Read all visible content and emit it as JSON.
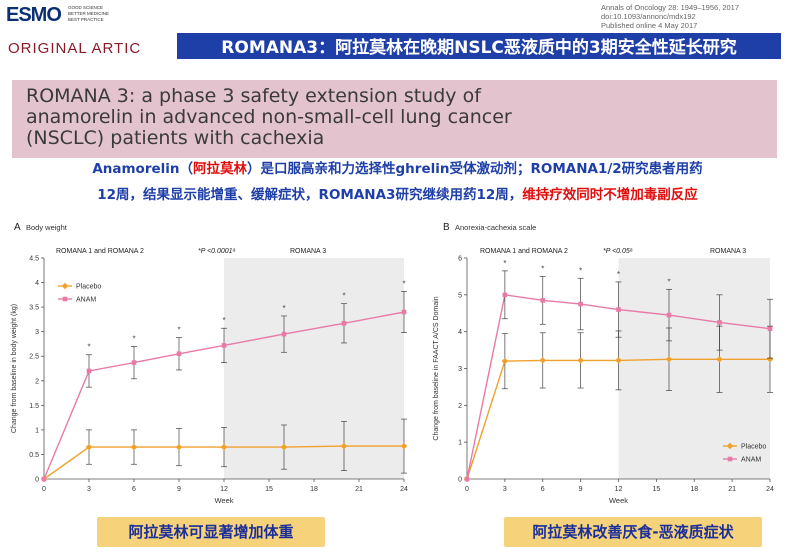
{
  "header": {
    "logo": "ESMO",
    "tagline": [
      "GOOD SCIENCE",
      "BETTER MEDICINE",
      "BEST PRACTICE"
    ],
    "journal_lines": [
      "Annals of Oncology 28: 1949–1956, 2017",
      "doi:10.1093/annonc/mdx192",
      "Published online 4 May 2017"
    ],
    "article_type": "ORIGINAL ARTIC",
    "banner": "ROMANA3：阿拉莫林在晚期NSLC恶液质中的3期安全性延长研究"
  },
  "paper_title": [
    "ROMANA 3: a phase 3 safety extension study of",
    "anamorelin in advanced non-small-cell lung cancer",
    "(NSCLC) patients with cachexia"
  ],
  "summary": {
    "line1_a": "Anamorelin（",
    "line1_red": "阿拉莫林",
    "line1_b": "）是口服高亲和力选择性ghrelin受体激动剂；ROMANA1/2研究患者用药",
    "line2_a": "12周，结果显示能增重、缓解症状，ROMANA3研究继续用药12周，",
    "line2_red": "维持疗效同时不增加毒副反应"
  },
  "colors": {
    "placebo": "#f0a12b",
    "anam": "#e87aa8",
    "shade": "#ececec",
    "banner_bg": "#1f3fa8",
    "caption_bg": "#f6d27b"
  },
  "captions": [
    "阿拉莫林可显著增加体重",
    "阿拉莫林改善厌食-恶液质症状"
  ],
  "chart_data": [
    {
      "type": "line",
      "panel": "A",
      "title": "Body weight",
      "xlabel": "Week",
      "ylabel": "Change from baseline in body weight (kg)",
      "xlim": [
        0,
        24
      ],
      "ylim": [
        0,
        4.5
      ],
      "xticks": [
        0,
        3,
        6,
        9,
        12,
        15,
        18,
        21,
        24
      ],
      "yticks": [
        0,
        0.5,
        1,
        1.5,
        2,
        2.5,
        3,
        3.5,
        4,
        4.5
      ],
      "ytick_labels": [
        "0",
        "0.5",
        "1",
        "1.5",
        "2",
        "2.5",
        "3",
        "3.5",
        "4",
        "4.5"
      ],
      "period_labels": [
        "ROMANA 1 and ROMANA 2",
        "*P <0.0001ᵃ",
        "ROMANA 3"
      ],
      "shaded_from_week": 12,
      "legend_position": "top-left",
      "series": [
        {
          "name": "Placebo",
          "x": [
            0,
            3,
            6,
            9,
            12,
            16,
            20,
            24
          ],
          "values": [
            0,
            0.65,
            0.65,
            0.65,
            0.65,
            0.65,
            0.67,
            0.67
          ],
          "err": [
            0,
            0.35,
            0.35,
            0.38,
            0.4,
            0.45,
            0.5,
            0.55
          ]
        },
        {
          "name": "ANAM",
          "x": [
            0,
            3,
            6,
            9,
            12,
            16,
            20,
            24
          ],
          "values": [
            0,
            2.2,
            2.37,
            2.55,
            2.72,
            2.95,
            3.17,
            3.4
          ],
          "err": [
            0,
            0.33,
            0.33,
            0.33,
            0.35,
            0.37,
            0.4,
            0.42
          ]
        }
      ],
      "significance_markers_x": [
        3,
        6,
        9,
        12,
        16,
        20,
        24
      ]
    },
    {
      "type": "line",
      "panel": "B",
      "title": "Anorexia-cachexia scale",
      "xlabel": "Week",
      "ylabel": "Change from baseline in FAACT A/CS Domain",
      "xlim": [
        0,
        24
      ],
      "ylim": [
        0,
        6
      ],
      "xticks": [
        0,
        3,
        6,
        9,
        12,
        15,
        18,
        21,
        24
      ],
      "yticks": [
        0,
        1,
        2,
        3,
        4,
        5,
        6
      ],
      "ytick_labels": [
        "0",
        "1",
        "2",
        "3",
        "4",
        "5",
        "6"
      ],
      "period_labels": [
        "ROMANA 1 and ROMANA 2",
        "*P <0.05ᵃ",
        "ROMANA 3"
      ],
      "shaded_from_week": 12,
      "legend_position": "bottom-right",
      "series": [
        {
          "name": "Placebo",
          "x": [
            0,
            3,
            6,
            9,
            12,
            16,
            20,
            24
          ],
          "values": [
            0,
            3.2,
            3.22,
            3.22,
            3.22,
            3.25,
            3.25,
            3.25
          ],
          "err": [
            0,
            0.75,
            0.75,
            0.75,
            0.8,
            0.85,
            0.9,
            0.9
          ]
        },
        {
          "name": "ANAM",
          "x": [
            0,
            3,
            6,
            9,
            12,
            16,
            20,
            24
          ],
          "values": [
            0,
            5.0,
            4.85,
            4.75,
            4.6,
            4.45,
            4.25,
            4.08
          ],
          "err": [
            0,
            0.65,
            0.65,
            0.7,
            0.75,
            0.7,
            0.75,
            0.8
          ]
        }
      ],
      "significance_markers_x": [
        3,
        6,
        9,
        12,
        16
      ]
    }
  ]
}
